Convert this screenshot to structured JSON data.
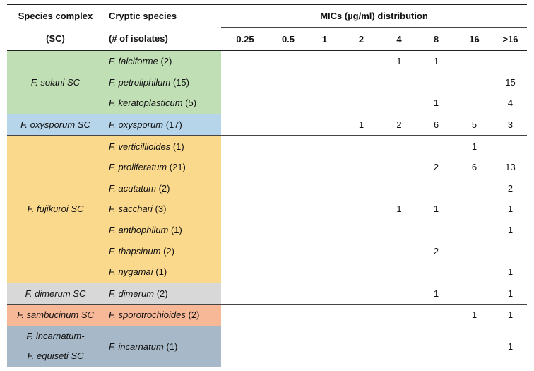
{
  "headers": {
    "species_complex": "Species complex",
    "species_complex_abbr": "(SC)",
    "cryptic_species": "Cryptic species",
    "isolates": "(# of isolates)",
    "mic_title": "MICs (µg/ml) distribution",
    "mic_columns": [
      "0.25",
      "0.5",
      "1",
      "2",
      "4",
      "8",
      "16",
      ">16"
    ]
  },
  "groups": [
    {
      "complex": "F. solani SC",
      "color": "#c0dfb5",
      "rows": [
        {
          "species": "F. falciforme",
          "count": "(2)",
          "mics": [
            "",
            "",
            "",
            "",
            "1",
            "1",
            "",
            ""
          ]
        },
        {
          "species": "F. petroliphilum",
          "count": "(15)",
          "mics": [
            "",
            "",
            "",
            "",
            "",
            "",
            "",
            "15"
          ]
        },
        {
          "species": "F. keratoplasticum",
          "count": "(5)",
          "mics": [
            "",
            "",
            "",
            "",
            "",
            "1",
            "",
            "4"
          ]
        }
      ]
    },
    {
      "complex": "F. oxysporum SC",
      "color": "#b6d5ea",
      "rows": [
        {
          "species": "F. oxysporum",
          "count": "(17)",
          "mics": [
            "",
            "",
            "",
            "1",
            "2",
            "6",
            "5",
            "3"
          ]
        }
      ]
    },
    {
      "complex": "F. fujikuroi SC",
      "color": "#fbd98c",
      "rows": [
        {
          "species": "F. verticillioides",
          "count": "(1)",
          "mics": [
            "",
            "",
            "",
            "",
            "",
            "",
            "1",
            ""
          ]
        },
        {
          "species": "F. proliferatum",
          "count": "(21)",
          "mics": [
            "",
            "",
            "",
            "",
            "",
            "2",
            "6",
            "13"
          ]
        },
        {
          "species": "F. acutatum",
          "count": "(2)",
          "mics": [
            "",
            "",
            "",
            "",
            "",
            "",
            "",
            "2"
          ]
        },
        {
          "species": "F. sacchari",
          "count": "(3)",
          "mics": [
            "",
            "",
            "",
            "",
            "1",
            "1",
            "",
            "1"
          ]
        },
        {
          "species": "F. anthophilum",
          "count": "(1)",
          "mics": [
            "",
            "",
            "",
            "",
            "",
            "",
            "",
            "1"
          ]
        },
        {
          "species": "F. thapsinum",
          "count": "(2)",
          "mics": [
            "",
            "",
            "",
            "",
            "",
            "2",
            "",
            ""
          ]
        },
        {
          "species": "F. nygamai",
          "count": "(1)",
          "mics": [
            "",
            "",
            "",
            "",
            "",
            "",
            "",
            "1"
          ]
        }
      ]
    },
    {
      "complex": "F. dimerum SC",
      "color": "#d8d8d8",
      "rows": [
        {
          "species": "F. dimerum",
          "count": "(2)",
          "mics": [
            "",
            "",
            "",
            "",
            "",
            "1",
            "",
            "1"
          ]
        }
      ]
    },
    {
      "complex": "F. sambucinum SC",
      "color": "#f6b897",
      "rows": [
        {
          "species": "F. sporotrochioides",
          "count": "(2)",
          "mics": [
            "",
            "",
            "",
            "",
            "",
            "",
            "1",
            "1"
          ]
        }
      ]
    },
    {
      "complex_lines": [
        "F. incarnatum-",
        "F. equiseti SC"
      ],
      "color": "#a7b9c9",
      "rows": [
        {
          "species": "F. incarnatum",
          "count": "(1)",
          "mics": [
            "",
            "",
            "",
            "",
            "",
            "",
            "",
            "1"
          ]
        }
      ]
    }
  ]
}
